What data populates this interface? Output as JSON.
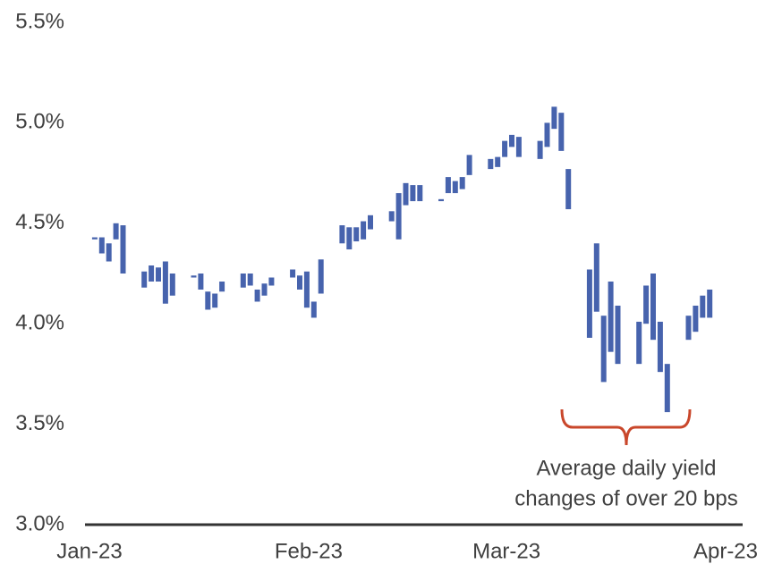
{
  "chart_data": {
    "type": "floating_bar",
    "color": "#4763ad",
    "annotation_color": "#c9472b",
    "annotation": [
      "Average daily yield",
      "changes of over 20 bps"
    ],
    "x": [
      1,
      2,
      3,
      4,
      5,
      8,
      9,
      10,
      11,
      12,
      15,
      16,
      17,
      18,
      19,
      22,
      23,
      24,
      25,
      26,
      29,
      30,
      31,
      32,
      33,
      36,
      37,
      38,
      39,
      40,
      43,
      44,
      45,
      46,
      47,
      50,
      51,
      52,
      53,
      54,
      57,
      58,
      59,
      60,
      61,
      64,
      65,
      66,
      67,
      68,
      71,
      72,
      73,
      74,
      75,
      78,
      79,
      80,
      81,
      82,
      85,
      86,
      87,
      88
    ],
    "low": [
      4.42,
      4.35,
      4.31,
      4.42,
      4.25,
      4.18,
      4.21,
      4.21,
      4.1,
      4.14,
      4.23,
      4.17,
      4.07,
      4.08,
      4.16,
      4.18,
      4.19,
      4.11,
      4.14,
      4.19,
      4.23,
      4.17,
      4.08,
      4.03,
      4.15,
      4.4,
      4.37,
      4.41,
      4.42,
      4.47,
      4.51,
      4.42,
      4.59,
      4.61,
      4.61,
      4.61,
      4.65,
      4.65,
      4.67,
      4.74,
      4.77,
      4.78,
      4.83,
      4.88,
      4.83,
      4.82,
      4.88,
      4.97,
      4.86,
      4.57,
      3.93,
      4.06,
      3.71,
      3.86,
      3.8,
      3.8,
      4.0,
      3.92,
      3.76,
      3.56,
      3.92,
      3.96,
      4.03,
      4.03
    ],
    "high": [
      4.43,
      4.43,
      4.4,
      4.5,
      4.49,
      4.26,
      4.29,
      4.28,
      4.31,
      4.25,
      4.24,
      4.25,
      4.16,
      4.15,
      4.21,
      4.25,
      4.25,
      4.17,
      4.2,
      4.23,
      4.27,
      4.24,
      4.26,
      4.11,
      4.32,
      4.49,
      4.48,
      4.48,
      4.51,
      4.54,
      4.56,
      4.65,
      4.7,
      4.69,
      4.69,
      4.62,
      4.73,
      4.71,
      4.73,
      4.84,
      4.82,
      4.83,
      4.91,
      4.94,
      4.93,
      4.91,
      5.0,
      5.08,
      5.05,
      4.77,
      4.27,
      4.4,
      4.04,
      4.21,
      4.09,
      4.01,
      4.19,
      4.25,
      4.01,
      3.8,
      4.04,
      4.09,
      4.14,
      4.17
    ],
    "xlim": [
      -0.4,
      93
    ],
    "xticks": [
      {
        "value": 0,
        "label": "Jan-23"
      },
      {
        "value": 31,
        "label": "Feb-23"
      },
      {
        "value": 59,
        "label": "Mar-23"
      },
      {
        "value": 90,
        "label": "Apr-23"
      }
    ],
    "ylim": [
      3.0,
      5.5
    ],
    "yticks": [
      {
        "value": 3.0,
        "label": "3.0%"
      },
      {
        "value": 3.5,
        "label": "3.5%"
      },
      {
        "value": 4.0,
        "label": "4.0%"
      },
      {
        "value": 4.5,
        "label": "4.5%"
      },
      {
        "value": 5.0,
        "label": "5.0%"
      },
      {
        "value": 5.5,
        "label": "5.5%"
      }
    ],
    "grid": false
  }
}
